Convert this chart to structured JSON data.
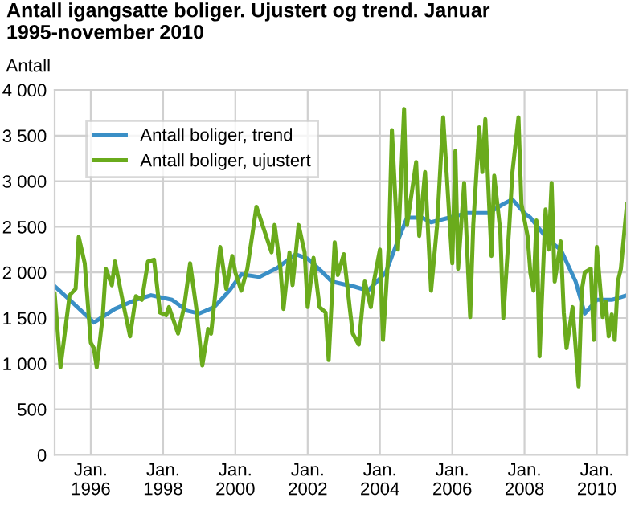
{
  "chart_data": {
    "type": "line",
    "title": "Antall igangsatte boliger. Ujustert og trend. Januar 1995-november 2010",
    "ylabel": "Antall",
    "series": [
      {
        "name": "Antall boliger, trend",
        "color": "#3a8fc6",
        "x": [
          "1995-01",
          "1995-06",
          "1996-02",
          "1996-09",
          "1997-04",
          "1997-09",
          "1998-04",
          "1998-09",
          "1999-01",
          "1999-06",
          "1999-11",
          "2000-03",
          "2000-09",
          "2001-03",
          "2001-09",
          "2002-01",
          "2002-06",
          "2002-09",
          "2003-01",
          "2003-04",
          "2003-09",
          "2004-03",
          "2004-07",
          "2004-10",
          "2005-03",
          "2005-06",
          "2005-12",
          "2006-06",
          "2007-01",
          "2007-06",
          "2007-09",
          "2008-01",
          "2008-03",
          "2008-09",
          "2009-01",
          "2009-06",
          "2009-09",
          "2010-01",
          "2010-06",
          "2010-11"
        ],
        "values": [
          1850,
          1700,
          1450,
          1600,
          1700,
          1750,
          1700,
          1580,
          1550,
          1620,
          1800,
          1980,
          1950,
          2050,
          2200,
          2150,
          2000,
          1900,
          1870,
          1850,
          1800,
          2000,
          2350,
          2600,
          2600,
          2550,
          2600,
          2650,
          2650,
          2750,
          2800,
          2650,
          2600,
          2350,
          2250,
          1900,
          1550,
          1700,
          1700,
          1750
        ]
      },
      {
        "name": "Antall boliger, ujustert",
        "color": "#6aab1c",
        "x": [
          "1995-01",
          "1995-03",
          "1995-06",
          "1995-08",
          "1995-09",
          "1995-11",
          "1996-01",
          "1996-02",
          "1996-03",
          "1996-05",
          "1996-06",
          "1996-08",
          "1996-09",
          "1996-12",
          "1997-02",
          "1997-04",
          "1997-06",
          "1997-08",
          "1997-10",
          "1997-12",
          "1998-02",
          "1998-03",
          "1998-06",
          "1998-08",
          "1998-10",
          "1998-12",
          "1999-02",
          "1999-04",
          "1999-05",
          "1999-08",
          "1999-10",
          "1999-12",
          "2000-01",
          "2000-03",
          "2000-05",
          "2000-08",
          "2000-10",
          "2001-01",
          "2001-02",
          "2001-04",
          "2001-05",
          "2001-07",
          "2001-08",
          "2001-10",
          "2001-12",
          "2002-01",
          "2002-03",
          "2002-05",
          "2002-07",
          "2002-08",
          "2002-10",
          "2002-11",
          "2003-01",
          "2003-03",
          "2003-04",
          "2003-06",
          "2003-08",
          "2003-10",
          "2003-11",
          "2004-01",
          "2004-02",
          "2004-04",
          "2004-05",
          "2004-07",
          "2004-09",
          "2004-10",
          "2005-01",
          "2005-02",
          "2005-04",
          "2005-06",
          "2005-08",
          "2005-10",
          "2005-12",
          "2006-01",
          "2006-02",
          "2006-03",
          "2006-05",
          "2006-07",
          "2006-08",
          "2006-10",
          "2006-11",
          "2006-12",
          "2007-01",
          "2007-02",
          "2007-03",
          "2007-05",
          "2007-06",
          "2007-08",
          "2007-09",
          "2007-11",
          "2007-12",
          "2008-02",
          "2008-03",
          "2008-04",
          "2008-05",
          "2008-06",
          "2008-08",
          "2008-09",
          "2008-10",
          "2008-11",
          "2009-01",
          "2009-02",
          "2009-03",
          "2009-05",
          "2009-07",
          "2009-08",
          "2009-09",
          "2009-11",
          "2009-12",
          "2010-01",
          "2010-03",
          "2010-04",
          "2010-05",
          "2010-06",
          "2010-07",
          "2010-08",
          "2010-09",
          "2010-11"
        ],
        "values": [
          1770,
          960,
          1750,
          1820,
          2390,
          2100,
          1230,
          1170,
          960,
          1520,
          2040,
          1860,
          2120,
          1620,
          1300,
          1740,
          1700,
          2120,
          2140,
          1560,
          1530,
          1620,
          1330,
          1620,
          2100,
          1620,
          980,
          1380,
          1330,
          2280,
          1820,
          2180,
          2000,
          1800,
          2040,
          2720,
          2520,
          2220,
          2520,
          2040,
          1600,
          2220,
          1860,
          2520,
          2220,
          1620,
          2160,
          1620,
          1560,
          1040,
          2330,
          1970,
          2200,
          1620,
          1330,
          1210,
          1900,
          1620,
          1900,
          2250,
          1260,
          2310,
          3560,
          2250,
          3790,
          2520,
          3210,
          2400,
          3100,
          1800,
          2520,
          3700,
          2630,
          2100,
          3330,
          2040,
          2980,
          1510,
          2520,
          3590,
          3100,
          3680,
          2920,
          2180,
          3060,
          2460,
          1500,
          2520,
          3100,
          3700,
          2750,
          2400,
          1990,
          1800,
          2570,
          1080,
          2690,
          2250,
          2980,
          1900,
          2340,
          1560,
          1170,
          1620,
          750,
          1800,
          2000,
          2040,
          1260,
          2280,
          1510,
          1680,
          1300,
          1540,
          1260,
          1900,
          2040,
          2750
        ]
      }
    ],
    "xlim": [
      "1995-01",
      "2010-11"
    ],
    "xticks": [
      {
        "value": "1996-01",
        "label": "Jan.\n1996"
      },
      {
        "value": "1998-01",
        "label": "Jan.\n1998"
      },
      {
        "value": "2000-01",
        "label": "Jan.\n2000"
      },
      {
        "value": "2002-01",
        "label": "Jan.\n2002"
      },
      {
        "value": "2004-01",
        "label": "Jan.\n2004"
      },
      {
        "value": "2006-01",
        "label": "Jan.\n2006"
      },
      {
        "value": "2008-01",
        "label": "Jan.\n2008"
      },
      {
        "value": "2010-01",
        "label": "Jan.\n2010"
      }
    ],
    "ylim": [
      0,
      4000
    ],
    "yticks": [
      {
        "value": 0,
        "label": "0"
      },
      {
        "value": 500,
        "label": "500"
      },
      {
        "value": 1000,
        "label": "1 000"
      },
      {
        "value": 1500,
        "label": "1 500"
      },
      {
        "value": 2000,
        "label": "2 000"
      },
      {
        "value": 2500,
        "label": "2 500"
      },
      {
        "value": 3000,
        "label": "3 000"
      },
      {
        "value": 3500,
        "label": "3 500"
      },
      {
        "value": 4000,
        "label": "4 000"
      }
    ],
    "grid": true,
    "legend": "top left",
    "line_style": "solid",
    "marker": "none"
  }
}
